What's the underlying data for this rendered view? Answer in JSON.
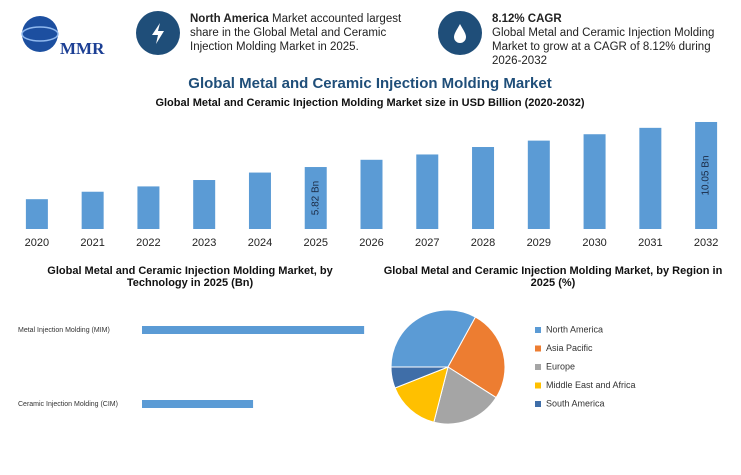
{
  "logo": "MMR",
  "highlights": [
    {
      "title": "North America",
      "text": "Market accounted largest share in the Global Metal and Ceramic Injection Molding Market in 2025."
    },
    {
      "title": "8.12% CAGR",
      "text": "Global Metal and Ceramic Injection Molding Market to grow at a CAGR of 8.12% during 2026-2032"
    }
  ],
  "title": "Global Metal and Ceramic Injection Molding Market",
  "chart_data": [
    {
      "type": "bar",
      "title": "Global Metal and Ceramic Injection Molding Market size in USD Billion (2020-2032)",
      "categories": [
        "2020",
        "2021",
        "2022",
        "2023",
        "2024",
        "2025",
        "2026",
        "2027",
        "2028",
        "2029",
        "2030",
        "2031",
        "2032"
      ],
      "values": [
        2.8,
        3.5,
        4.0,
        4.6,
        5.3,
        5.82,
        6.5,
        7.0,
        7.7,
        8.3,
        8.9,
        9.5,
        10.05
      ],
      "value_labels": [
        null,
        null,
        null,
        null,
        null,
        "5.82 Bn",
        null,
        null,
        null,
        null,
        null,
        null,
        "10.05 Bn"
      ],
      "color": "#5b9bd5",
      "ylim": [
        0,
        10.8
      ]
    },
    {
      "type": "hbar",
      "title": "Global Metal and Ceramic Injection Molding Market, by Technology in 2025 (Bn)",
      "categories": [
        "Metal Injection Molding (MIM)",
        "Ceramic Injection Molding (CIM)"
      ],
      "values": [
        3.88,
        1.94
      ],
      "color": "#5b9bd5",
      "xlim": [
        0,
        4
      ]
    },
    {
      "type": "pie",
      "title": "Global Metal and Ceramic Injection Molding Market, by Region in 2025 (%)",
      "series": [
        {
          "name": "North America",
          "color": "#5b9bd5",
          "value": 33
        },
        {
          "name": "Asia Pacific",
          "color": "#ed7d31",
          "value": 26
        },
        {
          "name": "Europe",
          "color": "#a5a5a5",
          "value": 20
        },
        {
          "name": "Middle East and Africa",
          "color": "#ffc000",
          "value": 15
        },
        {
          "name": "South America",
          "color": "#3f6ea8",
          "value": 6
        }
      ]
    }
  ]
}
